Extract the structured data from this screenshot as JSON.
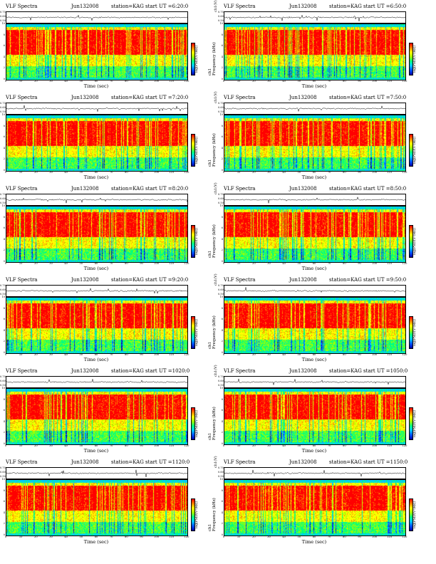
{
  "common": {
    "title_left": "VLF Spectra",
    "station": "station=KAG",
    "ylabel_ts": "ch1(V)",
    "ylabel_spec_line1": "ch1",
    "ylabel_spec_line2": "Frequency (kHz)",
    "xlabel": "Time (sec)",
    "cbar_label": "log(PSD/(V²/Hz))",
    "ts_ticks": [
      "0.70",
      "0.60",
      "0.50"
    ],
    "freq_ticks": [
      "10",
      "8",
      "6",
      "4",
      "2",
      "0"
    ],
    "time_ticks": [
      "0",
      "10",
      "20",
      "30",
      "40",
      "50",
      "60",
      "70",
      "80",
      "90",
      "100",
      "110",
      "120"
    ]
  },
  "panels": [
    {
      "date": "Jun132008",
      "start": "start UT =6:20:0"
    },
    {
      "date": "Jun132008",
      "start": "start UT =6:50:0"
    },
    {
      "date": "Jun132008",
      "start": "start UT =7:20:0"
    },
    {
      "date": "Jun132008",
      "start": "start UT =7:50:0"
    },
    {
      "date": "Jun132008",
      "start": "start UT =8:20:0"
    },
    {
      "date": "Jun132008",
      "start": "start UT =8:50:0"
    },
    {
      "date": "Jun132008",
      "start": "start UT =9:20:0"
    },
    {
      "date": "Jun132008",
      "start": "start UT =9:50:0"
    },
    {
      "date": "Jun132008",
      "start": "start UT =1020:0"
    },
    {
      "date": "Jun132008",
      "start": "start UT =1050:0"
    },
    {
      "date": "Jun132008",
      "start": "start UT =1120:0"
    },
    {
      "date": "Jun132008",
      "start": "start UT =1150:0"
    }
  ],
  "chart_data": {
    "type": "heatmap",
    "description_axes": "Each panel: top trace ch1 voltage vs time; bottom spectrogram frequency 0–10 kHz vs time 0–120 s",
    "xlim": [
      0,
      120
    ],
    "ylim_freq_khz": [
      0,
      10
    ],
    "ylim_ts_v": [
      0.5,
      0.7
    ],
    "colormap": [
      "#0000a0",
      "#0050ff",
      "#00c8ff",
      "#00ff80",
      "#a0ff00",
      "#ffff00",
      "#ff8000",
      "#ff0000"
    ],
    "bands_khz": [
      {
        "range": [
          9.5,
          10
        ],
        "level": "cyan"
      },
      {
        "range": [
          9.0,
          9.5
        ],
        "level": "yellow"
      },
      {
        "range": [
          4.5,
          9.0
        ],
        "level": "red"
      },
      {
        "range": [
          2.5,
          4.5
        ],
        "level": "yellow"
      },
      {
        "range": [
          0.5,
          2.5
        ],
        "level": "green"
      },
      {
        "range": [
          0,
          0.5
        ],
        "level": "cyan"
      }
    ]
  }
}
